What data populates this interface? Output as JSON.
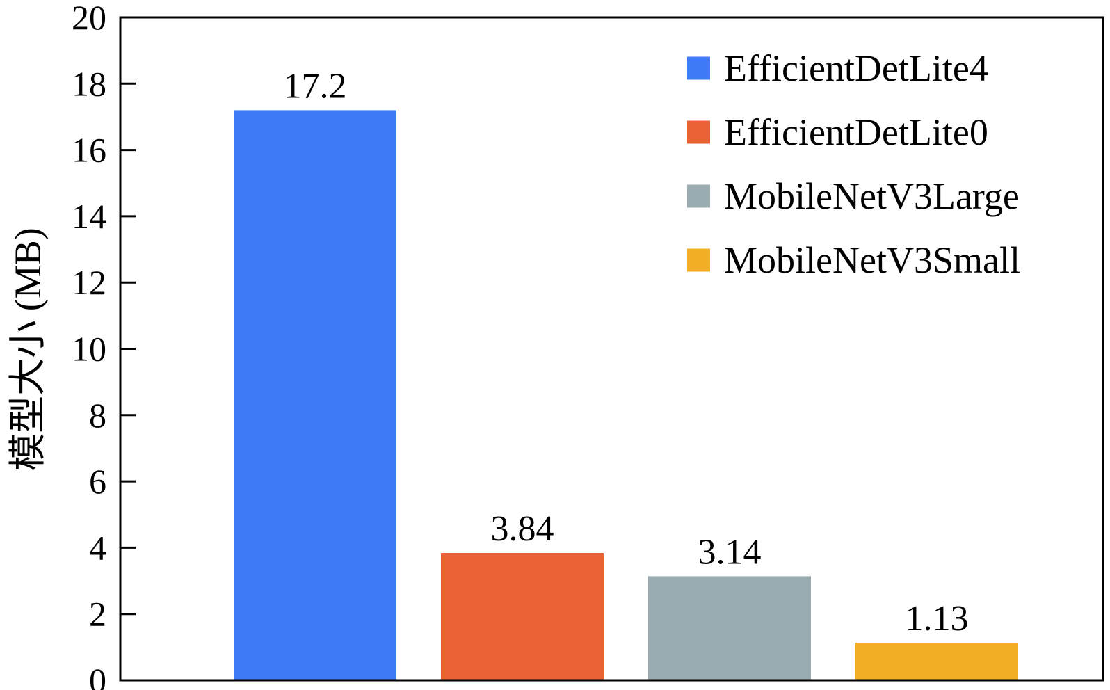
{
  "chart_data": {
    "type": "bar",
    "title": "",
    "xlabel": "",
    "ylabel": "模型大小 (MB)",
    "ylim": [
      0,
      20
    ],
    "yticks": [
      0,
      2,
      4,
      6,
      8,
      10,
      12,
      14,
      16,
      18,
      20
    ],
    "categories": [
      "EfficientDetLite4",
      "EfficientDetLite0",
      "MobileNetV3Large",
      "MobileNetV3Small"
    ],
    "values": [
      17.2,
      3.84,
      3.14,
      1.13
    ],
    "value_labels": [
      "17.2",
      "3.84",
      "3.14",
      "1.13"
    ],
    "colors": [
      "#3f7bf6",
      "#e96233",
      "#9aabb0",
      "#f4ae25"
    ],
    "legend": {
      "position": "top-right",
      "entries": [
        "EfficientDetLite4",
        "EfficientDetLite0",
        "MobileNetV3Large",
        "MobileNetV3Small"
      ]
    },
    "grid": false
  }
}
